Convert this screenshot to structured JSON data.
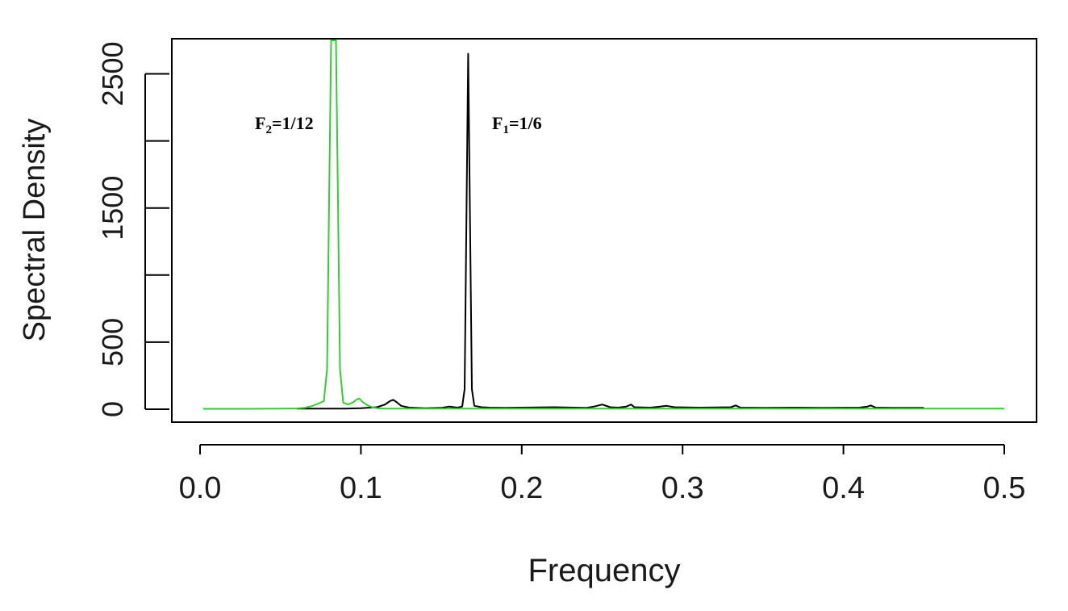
{
  "chart_data": {
    "type": "line",
    "title": "",
    "xlabel": "Frequency",
    "ylabel": "Spectral Density",
    "xlim": [
      0.0,
      0.5
    ],
    "ylim": [
      0,
      2750
    ],
    "grid": false,
    "legend": "none",
    "x_ticks": [
      "0.0",
      "0.1",
      "0.2",
      "0.3",
      "0.4",
      "0.5"
    ],
    "y_ticks": [
      "0",
      "500",
      "1500",
      "2500"
    ],
    "colors": {
      "black_series": "#000000",
      "green_series": "#33cc33"
    },
    "annotations": [
      {
        "id": "f2",
        "base": "F",
        "sub": "2",
        "rest": "=1/12",
        "x": 0.083,
        "y": 2100
      },
      {
        "id": "f1",
        "base": "F",
        "sub": "1",
        "rest": "=1/6",
        "x": 0.167,
        "y": 2100
      }
    ],
    "series": [
      {
        "color": "#000000",
        "x": [
          0.06,
          0.07,
          0.08,
          0.09,
          0.1,
          0.11,
          0.115,
          0.118,
          0.12,
          0.122,
          0.125,
          0.13,
          0.14,
          0.15,
          0.155,
          0.16,
          0.163,
          0.1645,
          0.1667,
          0.169,
          0.1705,
          0.175,
          0.18,
          0.19,
          0.2,
          0.22,
          0.24,
          0.245,
          0.25,
          0.255,
          0.26,
          0.265,
          0.268,
          0.27,
          0.28,
          0.285,
          0.29,
          0.295,
          0.31,
          0.33,
          0.333,
          0.336,
          0.35,
          0.37,
          0.39,
          0.41,
          0.415,
          0.417,
          0.42,
          0.43,
          0.44,
          0.45
        ],
        "y": [
          5,
          5,
          5,
          5,
          8,
          15,
          35,
          60,
          70,
          55,
          25,
          12,
          8,
          10,
          20,
          12,
          20,
          150,
          2650,
          150,
          25,
          15,
          12,
          10,
          12,
          15,
          10,
          20,
          35,
          15,
          12,
          20,
          35,
          15,
          12,
          18,
          25,
          15,
          12,
          15,
          28,
          12,
          10,
          12,
          10,
          12,
          20,
          28,
          12,
          10,
          10,
          10
        ]
      },
      {
        "color": "#33cc33",
        "x": [
          0.002,
          0.03,
          0.05,
          0.06,
          0.065,
          0.07,
          0.074,
          0.077,
          0.079,
          0.0805,
          0.0815,
          0.0828,
          0.0835,
          0.0845,
          0.0855,
          0.087,
          0.089,
          0.092,
          0.095,
          0.097,
          0.099,
          0.101,
          0.104,
          0.107,
          0.11,
          0.115,
          0.12,
          0.15,
          0.2,
          0.3,
          0.4,
          0.45,
          0.5
        ],
        "y": [
          3,
          3,
          4,
          6,
          10,
          25,
          45,
          60,
          300,
          1800,
          2750,
          2750,
          2750,
          2750,
          1800,
          300,
          50,
          35,
          50,
          70,
          80,
          55,
          30,
          15,
          8,
          5,
          5,
          5,
          4,
          4,
          4,
          4,
          4
        ]
      }
    ]
  }
}
